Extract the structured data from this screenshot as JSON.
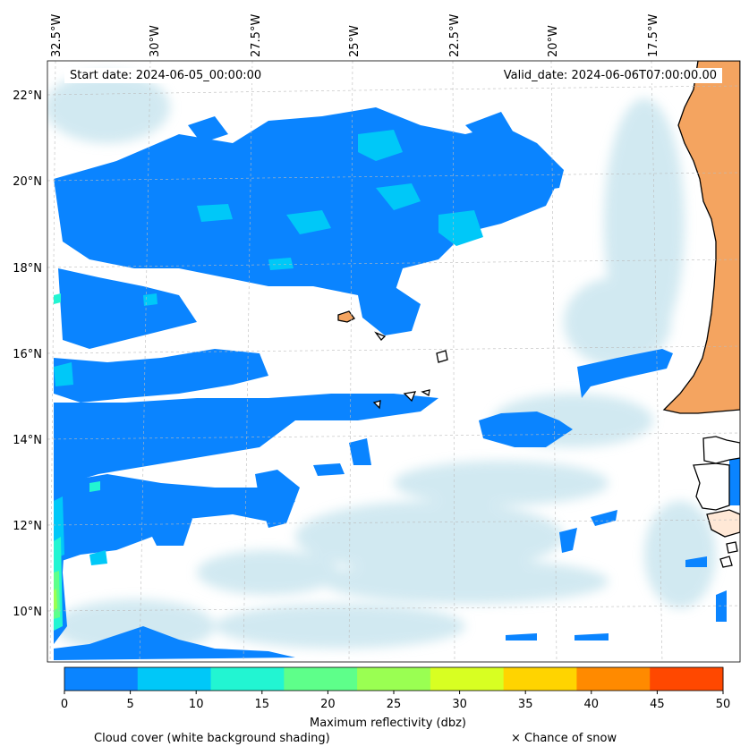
{
  "header": {
    "start_date": "Start date: 2024-06-05_00:00:00",
    "valid_date": "Valid_date: 2024-06-06T07:00:00.00"
  },
  "lon_labels": [
    "32.5°W",
    "30°W",
    "27.5°W",
    "25°W",
    "22.5°W",
    "20°W",
    "17.5°W"
  ],
  "lat_labels": [
    "22°N",
    "20°N",
    "18°N",
    "16°N",
    "14°N",
    "12°N",
    "10°N"
  ],
  "colorbar": {
    "title": "Maximum reflectivity (dbz)",
    "ticks": [
      "0",
      "5",
      "10",
      "15",
      "20",
      "25",
      "30",
      "35",
      "40",
      "45",
      "50"
    ],
    "colors": [
      "#0a84ff",
      "#00c8f8",
      "#22f5d2",
      "#5eff8a",
      "#9aff52",
      "#d8ff22",
      "#ffd400",
      "#ff8a00",
      "#ff4800"
    ]
  },
  "footer": {
    "cloud_cover": "Cloud cover (white background shading)",
    "snow": "× Chance of snow"
  },
  "colors": {
    "land": "#f4a460",
    "cloud": "#add8e6",
    "gridline": "#bbbbbb"
  }
}
